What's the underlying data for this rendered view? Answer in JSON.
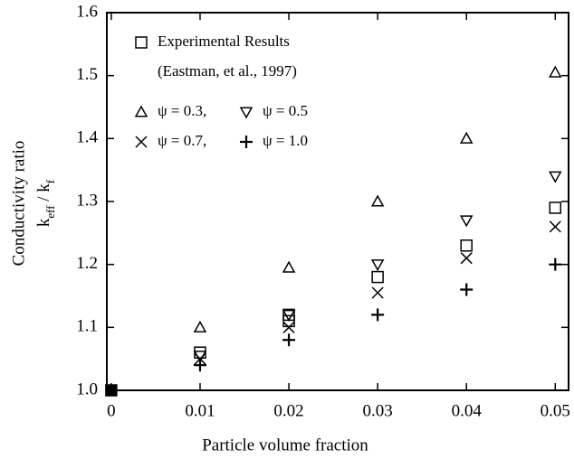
{
  "chart_data": {
    "type": "scatter",
    "xlabel": "Particle volume fraction",
    "ylabel": "Conductivity ratio",
    "ylabel_formula": [
      "k",
      "eff",
      " / k",
      "f"
    ],
    "annotation": "(Eastman, et al., 1997)",
    "xlim": [
      -0.0005,
      0.0515
    ],
    "ylim": [
      1.0,
      1.6
    ],
    "xticks": [
      0,
      0.01,
      0.02,
      0.03,
      0.04,
      0.05
    ],
    "yticks": [
      {
        "value": 1.0,
        "label": "1.0"
      },
      1.1,
      1.2,
      1.3,
      1.4,
      1.5,
      1.6
    ],
    "grid": false,
    "series": [
      {
        "name": "Experimental Results",
        "marker": "square",
        "color": "#000000",
        "x": [
          0.01,
          0.02,
          0.02,
          0.03,
          0.04,
          0.05
        ],
        "values": [
          1.06,
          1.12,
          1.11,
          1.18,
          1.23,
          1.29
        ]
      },
      {
        "name": "ψ = 0.3,",
        "marker": "triangle-up",
        "color": "#000000",
        "x": [
          0.01,
          0.02,
          0.03,
          0.04,
          0.05
        ],
        "values": [
          1.1,
          1.195,
          1.3,
          1.4,
          1.505
        ]
      },
      {
        "name": "ψ = 0.5",
        "marker": "triangle-down",
        "color": "#000000",
        "x": [
          0.01,
          0.02,
          0.03,
          0.04,
          0.05
        ],
        "values": [
          1.055,
          1.12,
          1.2,
          1.27,
          1.34
        ]
      },
      {
        "name": "ψ = 0.7,",
        "marker": "cross",
        "color": "#000000",
        "x": [
          0.01,
          0.02,
          0.03,
          0.04,
          0.05
        ],
        "values": [
          1.05,
          1.1,
          1.155,
          1.21,
          1.26
        ]
      },
      {
        "name": "ψ = 1.0",
        "marker": "plus",
        "color": "#000000",
        "x": [
          0.01,
          0.02,
          0.03,
          0.04,
          0.05
        ],
        "values": [
          1.04,
          1.08,
          1.12,
          1.16,
          1.2
        ]
      },
      {
        "marker": "filled-square",
        "color": "#000000",
        "x": [
          0
        ],
        "values": [
          1.0
        ]
      }
    ]
  }
}
